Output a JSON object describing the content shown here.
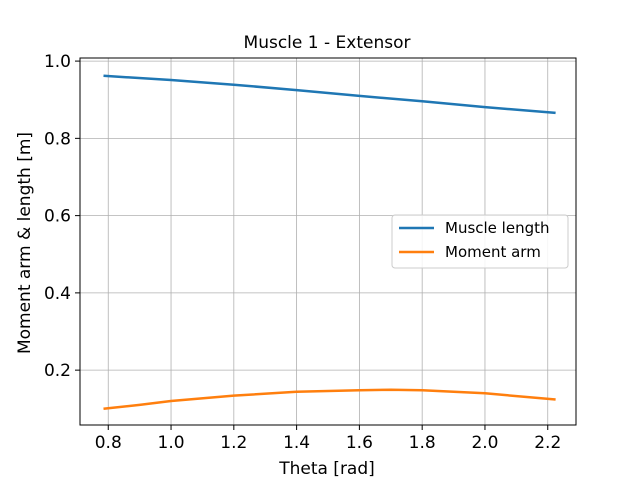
{
  "chart_data": {
    "type": "line",
    "title": "Muscle 1 - Extensor",
    "xlabel": "Theta [rad]",
    "ylabel": "Moment arm & length [m]",
    "xlim": [
      0.71,
      2.29
    ],
    "ylim": [
      0.058,
      1.008
    ],
    "xticks": [
      0.8,
      1.0,
      1.2,
      1.4,
      1.6,
      1.8,
      2.0,
      2.2
    ],
    "xtick_labels": [
      "0.8",
      "1.0",
      "1.2",
      "1.4",
      "1.6",
      "1.8",
      "2.0",
      "2.2"
    ],
    "yticks": [
      0.2,
      0.4,
      0.6,
      0.8,
      1.0
    ],
    "ytick_labels": [
      "0.2",
      "0.4",
      "0.6",
      "0.8",
      "1.0"
    ],
    "grid": true,
    "legend_position": "center-right",
    "series": [
      {
        "name": "Muscle length",
        "color": "#1f77b4",
        "x": [
          0.785,
          1.0,
          1.2,
          1.4,
          1.6,
          1.8,
          2.0,
          2.225
        ],
        "y": [
          0.962,
          0.951,
          0.939,
          0.925,
          0.91,
          0.896,
          0.881,
          0.866
        ]
      },
      {
        "name": "Moment arm",
        "color": "#ff7f0e",
        "x": [
          0.785,
          0.9,
          1.0,
          1.2,
          1.4,
          1.6,
          1.7,
          1.8,
          2.0,
          2.225
        ],
        "y": [
          0.1,
          0.11,
          0.12,
          0.134,
          0.144,
          0.148,
          0.149,
          0.148,
          0.14,
          0.124
        ]
      }
    ]
  }
}
